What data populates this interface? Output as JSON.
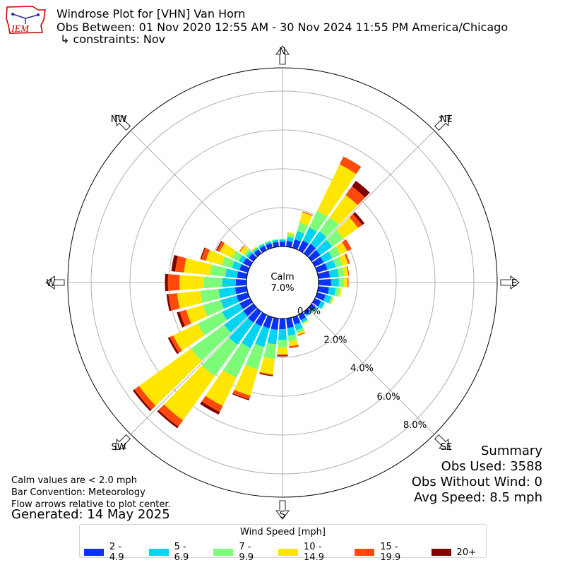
{
  "header": {
    "title": "Windrose Plot for [VHN] Van Horn",
    "obs_between": "Obs Between: 01 Nov 2020 12:55 AM - 30 Nov 2024 11:55 PM America/Chicago",
    "constraints": "↳ constraints: Nov"
  },
  "logo": {
    "text": "IEM",
    "color": "#cc0000"
  },
  "notes": {
    "calm_note": "Calm values are < 2.0 mph",
    "bar_convention": "Bar Convention: Meteorology",
    "flow_arrows": "Flow arrows relative to plot center.",
    "generated": "Generated: 14 May 2025"
  },
  "summary": {
    "title": "Summary",
    "obs_used": "Obs Used: 3588",
    "obs_without_wind": "Obs Without Wind: 0",
    "avg_speed": "Avg Speed: 8.5 mph"
  },
  "legend": {
    "title": "Wind Speed [mph]",
    "items": [
      {
        "label": "2 - 4.9",
        "color": "#0a32f4"
      },
      {
        "label": "5 - 6.9",
        "color": "#00d4f2"
      },
      {
        "label": "7 - 9.9",
        "color": "#7cfc79"
      },
      {
        "label": "10 - 14.9",
        "color": "#ffe600"
      },
      {
        "label": "15 - 19.9",
        "color": "#ff4a0a"
      },
      {
        "label": "20+",
        "color": "#800000"
      }
    ]
  },
  "chart_data": {
    "type": "windrose",
    "direction_labels": [
      "N",
      "NE",
      "E",
      "SE",
      "S",
      "SW",
      "W",
      "NW"
    ],
    "radial_ticks": [
      "0.0%",
      "2.0%",
      "4.0%",
      "6.0%",
      "8.0%"
    ],
    "radial_max": 9.2,
    "calm_label": "Calm",
    "calm_value": "7.0%",
    "calm_percent": 7.0,
    "bins": [
      "2 - 4.9",
      "5 - 6.9",
      "7 - 9.9",
      "10 - 14.9",
      "15 - 19.9",
      "20+"
    ],
    "series": [
      {
        "direction": 0,
        "values": [
          0.25,
          0.1,
          0.05,
          0.0,
          0.0,
          0.0
        ]
      },
      {
        "direction": 10,
        "values": [
          0.3,
          0.2,
          0.15,
          0.1,
          0.0,
          0.0
        ]
      },
      {
        "direction": 20,
        "values": [
          0.45,
          0.45,
          0.45,
          0.55,
          0.05,
          0.0
        ]
      },
      {
        "direction": 30,
        "values": [
          0.55,
          0.75,
          0.95,
          2.65,
          0.45,
          0.0
        ]
      },
      {
        "direction": 40,
        "values": [
          0.6,
          0.8,
          0.9,
          1.4,
          0.55,
          0.35
        ]
      },
      {
        "direction": 50,
        "values": [
          0.55,
          0.75,
          0.7,
          0.95,
          0.25,
          0.15
        ]
      },
      {
        "direction": 60,
        "values": [
          0.5,
          0.5,
          0.45,
          0.4,
          0.25,
          0.0
        ]
      },
      {
        "direction": 70,
        "values": [
          0.55,
          0.45,
          0.35,
          0.3,
          0.1,
          0.0
        ]
      },
      {
        "direction": 80,
        "values": [
          0.6,
          0.45,
          0.3,
          0.2,
          0.05,
          0.0
        ]
      },
      {
        "direction": 90,
        "values": [
          0.65,
          0.4,
          0.25,
          0.2,
          0.05,
          0.0
        ]
      },
      {
        "direction": 100,
        "values": [
          0.55,
          0.35,
          0.2,
          0.1,
          0.0,
          0.0
        ]
      },
      {
        "direction": 110,
        "values": [
          0.45,
          0.3,
          0.1,
          0.05,
          0.0,
          0.0
        ]
      },
      {
        "direction": 120,
        "values": [
          0.35,
          0.2,
          0.05,
          0.0,
          0.0,
          0.0
        ]
      },
      {
        "direction": 130,
        "values": [
          0.25,
          0.1,
          0.05,
          0.0,
          0.0,
          0.0
        ]
      },
      {
        "direction": 140,
        "values": [
          0.2,
          0.1,
          0.0,
          0.0,
          0.0,
          0.0
        ]
      },
      {
        "direction": 150,
        "values": [
          0.3,
          0.15,
          0.05,
          0.05,
          0.0,
          0.0
        ]
      },
      {
        "direction": 160,
        "values": [
          0.4,
          0.3,
          0.15,
          0.1,
          0.05,
          0.0
        ]
      },
      {
        "direction": 170,
        "values": [
          0.5,
          0.4,
          0.3,
          0.25,
          0.1,
          0.0
        ]
      },
      {
        "direction": 180,
        "values": [
          0.55,
          0.55,
          0.4,
          0.35,
          0.05,
          0.05
        ]
      },
      {
        "direction": 190,
        "values": [
          0.6,
          0.75,
          0.75,
          0.8,
          0.05,
          0.05
        ]
      },
      {
        "direction": 200,
        "values": [
          0.6,
          1.0,
          1.2,
          1.4,
          0.2,
          0.05
        ]
      },
      {
        "direction": 210,
        "values": [
          0.65,
          1.25,
          1.7,
          1.6,
          0.35,
          0.15
        ]
      },
      {
        "direction": 220,
        "values": [
          0.7,
          1.4,
          2.0,
          2.8,
          0.4,
          0.1
        ]
      },
      {
        "direction": 230,
        "values": [
          0.65,
          1.2,
          2.1,
          3.3,
          0.3,
          0.1
        ]
      },
      {
        "direction": 240,
        "values": [
          0.6,
          1.0,
          1.4,
          1.4,
          0.2,
          0.1
        ]
      },
      {
        "direction": 250,
        "values": [
          0.6,
          0.85,
          0.95,
          0.9,
          0.35,
          0.15
        ]
      },
      {
        "direction": 260,
        "values": [
          0.6,
          0.85,
          0.95,
          1.2,
          0.45,
          0.1
        ]
      },
      {
        "direction": 270,
        "values": [
          0.55,
          0.7,
          0.95,
          1.25,
          0.6,
          0.15
        ]
      },
      {
        "direction": 280,
        "values": [
          0.5,
          0.6,
          0.8,
          1.35,
          0.45,
          0.2
        ]
      },
      {
        "direction": 290,
        "values": [
          0.45,
          0.4,
          0.55,
          0.85,
          0.25,
          0.05
        ]
      },
      {
        "direction": 300,
        "values": [
          0.4,
          0.25,
          0.4,
          0.7,
          0.15,
          0.05
        ]
      },
      {
        "direction": 310,
        "values": [
          0.3,
          0.15,
          0.15,
          0.25,
          0.05,
          0.0
        ]
      },
      {
        "direction": 320,
        "values": [
          0.25,
          0.1,
          0.05,
          0.05,
          0.0,
          0.0
        ]
      },
      {
        "direction": 330,
        "values": [
          0.25,
          0.1,
          0.05,
          0.0,
          0.0,
          0.0
        ]
      },
      {
        "direction": 340,
        "values": [
          0.25,
          0.1,
          0.05,
          0.0,
          0.0,
          0.0
        ]
      },
      {
        "direction": 350,
        "values": [
          0.25,
          0.1,
          0.05,
          0.0,
          0.0,
          0.0
        ]
      }
    ]
  }
}
